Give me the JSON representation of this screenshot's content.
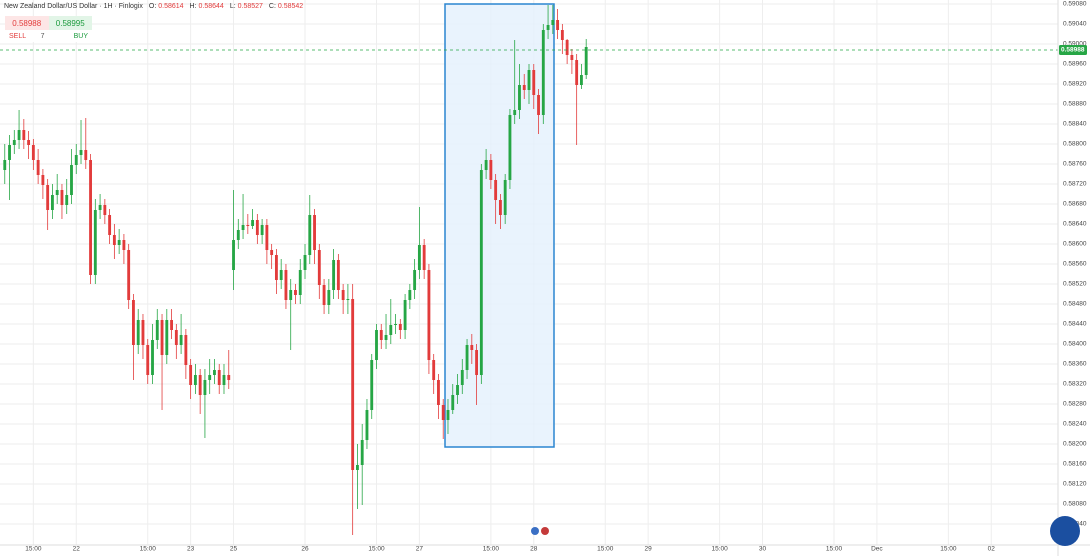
{
  "header": {
    "symbol": "New Zealand Dollar/US Dollar · 1H · Finlogix",
    "ohlc": [
      {
        "label": "O:",
        "value": 0.58614
      },
      {
        "label": "H:",
        "value": 0.58644
      },
      {
        "label": "L:",
        "value": 0.58527
      },
      {
        "label": "C:",
        "value": 0.58542
      }
    ]
  },
  "trade": {
    "sell_price": 0.58988,
    "sell": "SELL",
    "spread": 7,
    "buy_price": 0.58995,
    "buy": "BUY"
  },
  "chart_data": {
    "type": "candlestick",
    "up_color": "#26a645",
    "down_color": "#e23b3b",
    "x": [
      -6,
      -5,
      -4,
      -3,
      -2,
      -1,
      0,
      1,
      2,
      3,
      4,
      5,
      6,
      7,
      8,
      9,
      10,
      11,
      12,
      13,
      14,
      15,
      16,
      17,
      18,
      19,
      20,
      21,
      22,
      23,
      24,
      25,
      26,
      27,
      28,
      29,
      30,
      31,
      32,
      33,
      34,
      35,
      36,
      37,
      38,
      39,
      40,
      41,
      42,
      43,
      44,
      45,
      46,
      47,
      48,
      49,
      50,
      51,
      52,
      53,
      54,
      55,
      56,
      57,
      58,
      59,
      60,
      61,
      62,
      63,
      64,
      65,
      66,
      67,
      68,
      69,
      70,
      71,
      72,
      73,
      74,
      75,
      76,
      77,
      78,
      79,
      80,
      81,
      82,
      83,
      84,
      85,
      86,
      87,
      88,
      89,
      90,
      91,
      92,
      93,
      94,
      95,
      96,
      97,
      98,
      99,
      100,
      101,
      102,
      103,
      104,
      105,
      106,
      107,
      108,
      109,
      110,
      111,
      112,
      113,
      114,
      115,
      116
    ],
    "candles": [
      [
        0.58748,
        0.588,
        0.5872,
        0.58768
      ],
      [
        0.58768,
        0.58818,
        0.58688,
        0.58798
      ],
      [
        0.58798,
        0.58828,
        0.5878,
        0.58808
      ],
      [
        0.58808,
        0.58868,
        0.5879,
        0.58828
      ],
      [
        0.58828,
        0.5885,
        0.5879,
        0.58808
      ],
      [
        0.58808,
        0.58826,
        0.5877,
        0.58798
      ],
      [
        0.58798,
        0.5881,
        0.58748,
        0.58768
      ],
      [
        0.58768,
        0.5879,
        0.5872,
        0.58738
      ],
      [
        0.58738,
        0.5875,
        0.5869,
        0.58718
      ],
      [
        0.58718,
        0.5873,
        0.58628,
        0.58668
      ],
      [
        0.58668,
        0.5872,
        0.5865,
        0.58698
      ],
      [
        0.58698,
        0.5874,
        0.5868,
        0.58708
      ],
      [
        0.58708,
        0.5872,
        0.5865,
        0.58678
      ],
      [
        0.58678,
        0.5873,
        0.5866,
        0.58698
      ],
      [
        0.58698,
        0.5879,
        0.5868,
        0.58758
      ],
      [
        0.58758,
        0.588,
        0.5874,
        0.58778
      ],
      [
        0.58778,
        0.58848,
        0.5876,
        0.58788
      ],
      [
        0.58788,
        0.58852,
        0.5875,
        0.58768
      ],
      [
        0.58768,
        0.5878,
        0.5852,
        0.58538
      ],
      [
        0.58538,
        0.5869,
        0.5852,
        0.58668
      ],
      [
        0.58668,
        0.587,
        0.5865,
        0.58678
      ],
      [
        0.58678,
        0.5869,
        0.5864,
        0.58658
      ],
      [
        0.58658,
        0.5867,
        0.586,
        0.58618
      ],
      [
        0.58618,
        0.5864,
        0.5857,
        0.58598
      ],
      [
        0.58598,
        0.5863,
        0.5858,
        0.58608
      ],
      [
        0.58608,
        0.5862,
        0.5856,
        0.58588
      ],
      [
        0.58588,
        0.586,
        0.5847,
        0.58488
      ],
      [
        0.58488,
        0.585,
        0.58328,
        0.58398
      ],
      [
        0.58398,
        0.5847,
        0.5838,
        0.58448
      ],
      [
        0.58448,
        0.5846,
        0.5837,
        0.58398
      ],
      [
        0.58398,
        0.5841,
        0.5832,
        0.58338
      ],
      [
        0.58338,
        0.5844,
        0.5832,
        0.58408
      ],
      [
        0.58408,
        0.5847,
        0.5839,
        0.58448
      ],
      [
        0.58448,
        0.5846,
        0.58268,
        0.58378
      ],
      [
        0.58378,
        0.5847,
        0.5836,
        0.58448
      ],
      [
        0.58448,
        0.5847,
        0.5841,
        0.58428
      ],
      [
        0.58428,
        0.5844,
        0.5837,
        0.58398
      ],
      [
        0.58398,
        0.5846,
        0.5838,
        0.58418
      ],
      [
        0.58418,
        0.5843,
        0.5833,
        0.58358
      ],
      [
        0.58358,
        0.5837,
        0.5829,
        0.58318
      ],
      [
        0.58318,
        0.5836,
        0.583,
        0.58338
      ],
      [
        0.58338,
        0.5835,
        0.5826,
        0.58298
      ],
      [
        0.58298,
        0.5835,
        0.58212,
        0.58328
      ],
      [
        0.58328,
        0.5837,
        0.583,
        0.58338
      ],
      [
        0.58338,
        0.5837,
        0.5832,
        0.58348
      ],
      [
        0.58348,
        0.5836,
        0.583,
        0.58318
      ],
      [
        0.58318,
        0.5836,
        0.583,
        0.58338
      ],
      [
        0.58338,
        0.58388,
        0.5831,
        0.58328
      ],
      [
        0.58548,
        0.58708,
        0.58508,
        0.58608
      ],
      [
        0.58608,
        0.5865,
        0.5859,
        0.58628
      ],
      [
        0.58628,
        0.587,
        0.5861,
        0.58638
      ],
      [
        0.58638,
        0.5866,
        0.5862,
        0.58636
      ],
      [
        0.58636,
        0.5867,
        0.5863,
        0.58648
      ],
      [
        0.58648,
        0.5866,
        0.586,
        0.58618
      ],
      [
        0.58618,
        0.5865,
        0.586,
        0.58638
      ],
      [
        0.58638,
        0.5865,
        0.5856,
        0.58588
      ],
      [
        0.58588,
        0.586,
        0.5855,
        0.58578
      ],
      [
        0.58578,
        0.5859,
        0.585,
        0.58528
      ],
      [
        0.58528,
        0.5857,
        0.5851,
        0.58548
      ],
      [
        0.58548,
        0.5856,
        0.5847,
        0.58488
      ],
      [
        0.58488,
        0.5853,
        0.58388,
        0.58508
      ],
      [
        0.58508,
        0.5852,
        0.5848,
        0.58498
      ],
      [
        0.58498,
        0.5857,
        0.5848,
        0.58548
      ],
      [
        0.58548,
        0.586,
        0.5853,
        0.58578
      ],
      [
        0.58578,
        0.58698,
        0.5856,
        0.58658
      ],
      [
        0.58658,
        0.5867,
        0.5856,
        0.58588
      ],
      [
        0.58588,
        0.586,
        0.5849,
        0.58518
      ],
      [
        0.58518,
        0.5853,
        0.5846,
        0.58478
      ],
      [
        0.58478,
        0.5853,
        0.5846,
        0.58508
      ],
      [
        0.58508,
        0.5859,
        0.5849,
        0.58568
      ],
      [
        0.58568,
        0.5858,
        0.5849,
        0.58508
      ],
      [
        0.58508,
        0.5852,
        0.5846,
        0.58488
      ],
      [
        0.58488,
        0.5852,
        0.5846,
        0.5849
      ],
      [
        0.5849,
        0.5852,
        0.58018,
        0.58148
      ],
      [
        0.58148,
        0.582,
        0.5807,
        0.58158
      ],
      [
        0.58158,
        0.5824,
        0.58078,
        0.58208
      ],
      [
        0.58208,
        0.5829,
        0.5819,
        0.58268
      ],
      [
        0.58268,
        0.5838,
        0.5825,
        0.58368
      ],
      [
        0.58368,
        0.5844,
        0.5835,
        0.58428
      ],
      [
        0.58428,
        0.5844,
        0.5839,
        0.58408
      ],
      [
        0.58408,
        0.5846,
        0.5839,
        0.58418
      ],
      [
        0.58418,
        0.5849,
        0.584,
        0.58438
      ],
      [
        0.58438,
        0.5846,
        0.5842,
        0.5844
      ],
      [
        0.5844,
        0.5845,
        0.5841,
        0.58428
      ],
      [
        0.58428,
        0.585,
        0.5841,
        0.58488
      ],
      [
        0.58488,
        0.5852,
        0.5847,
        0.58508
      ],
      [
        0.58508,
        0.5857,
        0.5849,
        0.58548
      ],
      [
        0.58548,
        0.58674,
        0.5853,
        0.58598
      ],
      [
        0.58598,
        0.5861,
        0.5853,
        0.58548
      ],
      [
        0.58548,
        0.5856,
        0.5834,
        0.58368
      ],
      [
        0.58368,
        0.5838,
        0.583,
        0.58328
      ],
      [
        0.58328,
        0.5834,
        0.5825,
        0.58278
      ],
      [
        0.58278,
        0.5829,
        0.5821,
        0.58248
      ],
      [
        0.58248,
        0.5829,
        0.5822,
        0.58268
      ],
      [
        0.58268,
        0.5832,
        0.5826,
        0.58298
      ],
      [
        0.58298,
        0.5834,
        0.5828,
        0.58318
      ],
      [
        0.58318,
        0.5837,
        0.583,
        0.58348
      ],
      [
        0.58348,
        0.5841,
        0.5833,
        0.58398
      ],
      [
        0.58398,
        0.5842,
        0.5836,
        0.58388
      ],
      [
        0.58388,
        0.584,
        0.58278,
        0.58338
      ],
      [
        0.58338,
        0.5876,
        0.5832,
        0.58748
      ],
      [
        0.58748,
        0.5879,
        0.5873,
        0.58768
      ],
      [
        0.58768,
        0.5878,
        0.5871,
        0.58728
      ],
      [
        0.58728,
        0.5874,
        0.5864,
        0.58688
      ],
      [
        0.58688,
        0.587,
        0.5863,
        0.58658
      ],
      [
        0.58658,
        0.5874,
        0.5864,
        0.58728
      ],
      [
        0.58728,
        0.5887,
        0.5871,
        0.58858
      ],
      [
        0.58858,
        0.59008,
        0.5884,
        0.58868
      ],
      [
        0.58868,
        0.5896,
        0.5885,
        0.58918
      ],
      [
        0.58918,
        0.5894,
        0.5889,
        0.58908
      ],
      [
        0.58908,
        0.5896,
        0.5888,
        0.58948
      ],
      [
        0.58948,
        0.5896,
        0.5887,
        0.58898
      ],
      [
        0.58898,
        0.5891,
        0.5882,
        0.58858
      ],
      [
        0.58858,
        0.5904,
        0.5884,
        0.59028
      ],
      [
        0.59028,
        0.59078,
        0.5901,
        0.59038
      ],
      [
        0.59038,
        0.59078,
        0.5902,
        0.59048
      ],
      [
        0.59048,
        0.5907,
        0.5901,
        0.59028
      ],
      [
        0.59028,
        0.5904,
        0.5898,
        0.59008
      ],
      [
        0.59008,
        0.5901,
        0.5896,
        0.58978
      ],
      [
        0.58978,
        0.5899,
        0.5894,
        0.58968
      ],
      [
        0.58968,
        0.5898,
        0.58798,
        0.58918
      ],
      [
        0.58918,
        0.5896,
        0.5891,
        0.58938
      ],
      [
        0.58938,
        0.5901,
        0.5893,
        0.58994
      ]
    ],
    "xlim": [
      -7,
      215
    ],
    "xticks": [
      {
        "value": 0,
        "label": "15:00"
      },
      {
        "value": 9,
        "label": "22"
      },
      {
        "value": 24,
        "label": "15:00"
      },
      {
        "value": 33,
        "label": "23"
      },
      {
        "value": 42,
        "label": "25"
      },
      {
        "value": 57,
        "label": "26"
      },
      {
        "value": 72,
        "label": "15:00"
      },
      {
        "value": 81,
        "label": "27"
      },
      {
        "value": 96,
        "label": "15:00"
      },
      {
        "value": 105,
        "label": "28"
      },
      {
        "value": 120,
        "label": "15:00"
      },
      {
        "value": 129,
        "label": "29"
      },
      {
        "value": 144,
        "label": "15:00"
      },
      {
        "value": 153,
        "label": "30"
      },
      {
        "value": 168,
        "label": "15:00"
      },
      {
        "value": 177,
        "label": "Dec"
      },
      {
        "value": 192,
        "label": "15:00"
      },
      {
        "value": 201,
        "label": "02"
      }
    ],
    "ylim": [
      0.57998,
      0.59088
    ],
    "yticks": [
      {
        "value": 0.5908,
        "label": "0.59080"
      },
      {
        "value": 0.5904,
        "label": "0.59040"
      },
      {
        "value": 0.59,
        "label": "0.59000"
      },
      {
        "value": 0.5896,
        "label": "0.58960"
      },
      {
        "value": 0.5892,
        "label": "0.58920"
      },
      {
        "value": 0.5888,
        "label": "0.58880"
      },
      {
        "value": 0.5884,
        "label": "0.58840"
      },
      {
        "value": 0.588,
        "label": "0.58800"
      },
      {
        "value": 0.5876,
        "label": "0.58760"
      },
      {
        "value": 0.5872,
        "label": "0.58720"
      },
      {
        "value": 0.5868,
        "label": "0.58680"
      },
      {
        "value": 0.5864,
        "label": "0.58640"
      },
      {
        "value": 0.586,
        "label": "0.58600"
      },
      {
        "value": 0.5856,
        "label": "0.58560"
      },
      {
        "value": 0.5852,
        "label": "0.58520"
      },
      {
        "value": 0.5848,
        "label": "0.58480"
      },
      {
        "value": 0.5844,
        "label": "0.58440"
      },
      {
        "value": 0.584,
        "label": "0.58400"
      },
      {
        "value": 0.5836,
        "label": "0.58360"
      },
      {
        "value": 0.5832,
        "label": "0.58320"
      },
      {
        "value": 0.5828,
        "label": "0.58280"
      },
      {
        "value": 0.5824,
        "label": "0.58240"
      },
      {
        "value": 0.582,
        "label": "0.58200"
      },
      {
        "value": 0.5816,
        "label": "0.58160"
      },
      {
        "value": 0.5812,
        "label": "0.58120"
      },
      {
        "value": 0.5808,
        "label": "0.58080"
      },
      {
        "value": 0.5804,
        "label": "0.58040"
      }
    ],
    "grid": true,
    "last_price": 0.58988
  }
}
